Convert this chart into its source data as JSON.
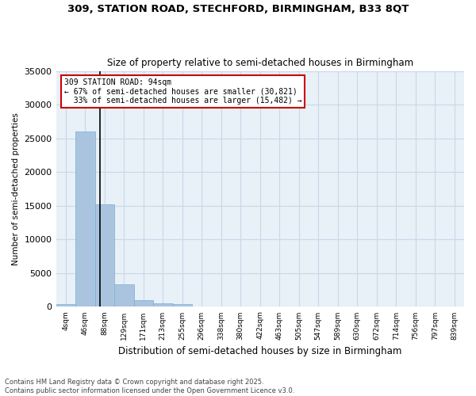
{
  "title_line1": "309, STATION ROAD, STECHFORD, BIRMINGHAM, B33 8QT",
  "title_line2": "Size of property relative to semi-detached houses in Birmingham",
  "xlabel": "Distribution of semi-detached houses by size in Birmingham",
  "ylabel": "Number of semi-detached properties",
  "footnote": "Contains HM Land Registry data © Crown copyright and database right 2025.\nContains public sector information licensed under the Open Government Licence v3.0.",
  "property_label": "309 STATION ROAD: 94sqm",
  "pct_smaller": "67% of semi-detached houses are smaller (30,821)",
  "pct_larger": "33% of semi-detached houses are larger (15,482)",
  "property_size": 94,
  "bin_labels": [
    "4sqm",
    "46sqm",
    "88sqm",
    "129sqm",
    "171sqm",
    "213sqm",
    "255sqm",
    "296sqm",
    "338sqm",
    "380sqm",
    "422sqm",
    "463sqm",
    "505sqm",
    "547sqm",
    "589sqm",
    "630sqm",
    "672sqm",
    "714sqm",
    "756sqm",
    "797sqm",
    "839sqm"
  ],
  "bar_values": [
    350,
    26100,
    15200,
    3300,
    1050,
    500,
    350,
    100,
    0,
    0,
    0,
    0,
    0,
    0,
    0,
    0,
    0,
    0,
    0,
    0,
    0
  ],
  "bar_color": "#aac4e0",
  "bar_edge_color": "#7aaed0",
  "vline_color": "#000000",
  "annotation_box_color": "#cc0000",
  "grid_color": "#c8d8e8",
  "bg_color": "#e8f0f8",
  "ylim": [
    0,
    35000
  ],
  "yticks": [
    0,
    5000,
    10000,
    15000,
    20000,
    25000,
    30000,
    35000
  ]
}
